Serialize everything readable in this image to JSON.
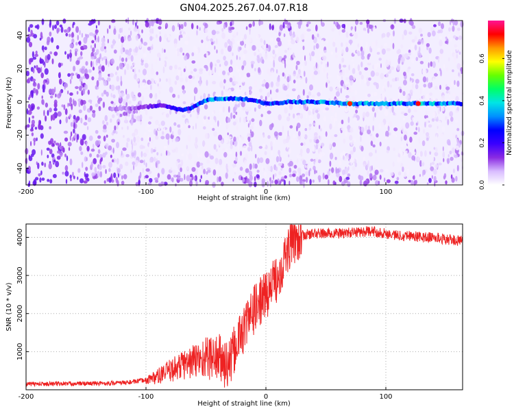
{
  "figure_title": "GN04.2025.267.04.07.R18",
  "chart_data": [
    {
      "type": "heatmap",
      "xlabel": "Height of straight line (km)",
      "ylabel": "Frequency (Hz)",
      "xlim": [
        -200,
        164
      ],
      "ylim": [
        -50,
        49
      ],
      "x_ticks": [
        -200,
        -100,
        0,
        100
      ],
      "y_ticks": [
        -40,
        -20,
        0,
        20,
        40
      ],
      "colorbar": {
        "label": "Normalized spectral amplitude",
        "range": [
          0.0,
          0.78
        ],
        "ticks": [
          0.0,
          0.2,
          0.4,
          0.6
        ],
        "colormap": [
          "#ffffff",
          "#d8bcff",
          "#8a2be2",
          "#3a00ff",
          "#0000ff",
          "#0090ff",
          "#00e5e5",
          "#00ff66",
          "#66ff00",
          "#ffff00",
          "#ff9900",
          "#ff0000",
          "#ff1493"
        ]
      },
      "ridge": {
        "x": [
          -130,
          -110,
          -100,
          -90,
          -80,
          -70,
          -60,
          -50,
          -40,
          -30,
          -20,
          -10,
          0,
          20,
          40,
          70,
          100,
          130,
          164
        ],
        "frequency": [
          -4,
          -4,
          -3,
          -2,
          -3,
          -5,
          -3,
          1,
          2,
          2,
          2,
          1,
          -1,
          0,
          0,
          -1,
          -1,
          -1,
          -1
        ],
        "amplitude": [
          0.08,
          0.1,
          0.12,
          0.16,
          0.2,
          0.22,
          0.25,
          0.3,
          0.32,
          0.3,
          0.28,
          0.27,
          0.26,
          0.3,
          0.32,
          0.34,
          0.32,
          0.34,
          0.3
        ]
      },
      "peak_points": [
        {
          "x": 70,
          "frequency": -1,
          "amplitude": 0.7
        },
        {
          "x": 127,
          "frequency": -1,
          "amplitude": 0.72
        }
      ]
    },
    {
      "type": "line",
      "xlabel": "Height of straight line (km)",
      "ylabel": "SNR (10 * v/v)",
      "xlim": [
        -200,
        164
      ],
      "ylim": [
        0,
        4350
      ],
      "x_ticks": [
        -200,
        -100,
        0,
        100
      ],
      "y_ticks": [
        1000,
        2000,
        3000,
        4000
      ],
      "color": "#ee2222",
      "series": [
        {
          "x": [
            -200,
            -180,
            -160,
            -140,
            -120,
            -110,
            -100,
            -90,
            -80,
            -70,
            -60,
            -50,
            -40,
            -35,
            -30,
            -25,
            -20,
            -15,
            -10,
            -5,
            0,
            5,
            10,
            15,
            20,
            25,
            30,
            40,
            50,
            60,
            70,
            80,
            90,
            100,
            110,
            120,
            130,
            140,
            150,
            164
          ],
          "values": [
            150,
            155,
            160,
            165,
            180,
            210,
            260,
            350,
            500,
            650,
            750,
            850,
            850,
            700,
            650,
            1200,
            1500,
            1800,
            2100,
            2300,
            2500,
            2700,
            3000,
            3400,
            3800,
            4000,
            4050,
            4100,
            4100,
            4100,
            4120,
            4150,
            4150,
            4100,
            4050,
            4050,
            4000,
            4000,
            3950,
            3900
          ]
        }
      ]
    }
  ]
}
